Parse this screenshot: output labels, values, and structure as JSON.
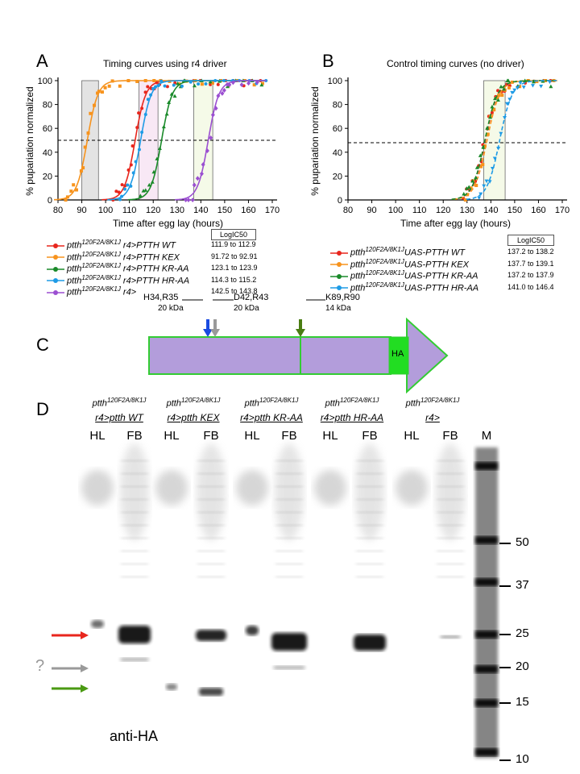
{
  "panelA": {
    "letter": "A",
    "title": "Timing curves using r4 driver",
    "ylabel": "% pupariation normalized",
    "xlabel": "Time after egg lay (hours)",
    "logic50_header": "LogIC50",
    "legend": [
      {
        "genotype": "ptth",
        "sup": "120F2A/8K1J",
        "driver": " r4>PTTH WT",
        "range": "111.9 to 112.9",
        "color": "#e8261d"
      },
      {
        "genotype": "ptth",
        "sup": "120F2A/8K1J",
        "driver": " r4>PTTH KEX",
        "range": "91.72 to 92.91",
        "color": "#f7931d"
      },
      {
        "genotype": "ptth",
        "sup": "120F2A/8K1J",
        "driver": " r4>PTTH KR-AA",
        "range": "123.1 to 123.9",
        "color": "#1a8a2a"
      },
      {
        "genotype": "ptth",
        "sup": "120F2A/8K1J",
        "driver": " r4>PTTH HR-AA",
        "range": "114.3 to 115.2",
        "color": "#1e9be6"
      },
      {
        "genotype": "ptth",
        "sup": "120F2A/8K1J",
        "driver": " r4>",
        "range": "142.5 to 143.8",
        "color": "#9b4fd1"
      }
    ]
  },
  "panelB": {
    "letter": "B",
    "title": "Control timing curves (no driver)",
    "ylabel": "% pupariation normalized",
    "xlabel": "Time after egg lay (hours)",
    "logic50_header": "LogIC50",
    "legend": [
      {
        "genotype": "ptth",
        "sup": "120F2A/8K1J",
        "driver": "UAS-PTTH WT",
        "range": "137.2 to 138.2",
        "color": "#e8261d"
      },
      {
        "genotype": "ptth",
        "sup": "120F2A/8K1J",
        "driver": "UAS-PTTH KEX",
        "range": "137.7 to 139.1",
        "color": "#f7931d"
      },
      {
        "genotype": "ptth",
        "sup": "120F2A/8K1J",
        "driver": "UAS-PTTH KR-AA",
        "range": "137.2 to 137.9",
        "color": "#1a8a2a"
      },
      {
        "genotype": "ptth",
        "sup": "120F2A/8K1J",
        "driver": "UAS-PTTH HR-AA",
        "range": "141.0 to 146.4",
        "color": "#1e9be6"
      }
    ]
  },
  "chart_data": [
    {
      "type": "scatter",
      "title": "Timing curves using r4 driver",
      "xlabel": "Time after egg lay (hours)",
      "ylabel": "% pupariation normalized",
      "xlim": [
        80,
        170
      ],
      "ylim": [
        0,
        100
      ],
      "xticks": [
        "80",
        "90",
        "100",
        "110",
        "120",
        "130",
        "140",
        "150",
        "160",
        "170"
      ],
      "yticks": [
        "0",
        "20",
        "40",
        "60",
        "80",
        "100"
      ],
      "reference_line_y": 50,
      "shaded_intervals": [
        {
          "x": [
            90,
            97
          ],
          "color": "#d0d0d0"
        },
        {
          "x": [
            114,
            122
          ],
          "color": "#f3d9ee"
        },
        {
          "x": [
            137,
            145
          ],
          "color": "#eef7d8"
        }
      ],
      "series": [
        {
          "name": "ptth120F2A/8K1J r4>PTTH WT",
          "color": "#e8261d",
          "ic50": 112.4
        },
        {
          "name": "ptth120F2A/8K1J r4>PTTH KEX",
          "color": "#f7931d",
          "ic50": 92.3
        },
        {
          "name": "ptth120F2A/8K1J r4>PTTH KR-AA",
          "color": "#1a8a2a",
          "ic50": 123.5
        },
        {
          "name": "ptth120F2A/8K1J r4>PTTH HR-AA",
          "color": "#1e9be6",
          "ic50": 114.7
        },
        {
          "name": "ptth120F2A/8K1J r4>",
          "color": "#9b4fd1",
          "ic50": 143.1
        }
      ]
    },
    {
      "type": "scatter",
      "title": "Control timing curves (no driver)",
      "xlabel": "Time after egg lay (hours)",
      "ylabel": "% pupariation normalized",
      "xlim": [
        80,
        170
      ],
      "ylim": [
        0,
        100
      ],
      "xticks": [
        "80",
        "90",
        "100",
        "110",
        "120",
        "130",
        "140",
        "150",
        "160",
        "170"
      ],
      "yticks": [
        "0",
        "20",
        "40",
        "60",
        "80",
        "100"
      ],
      "reference_line_y": 48,
      "shaded_intervals": [
        {
          "x": [
            137,
            146
          ],
          "color": "#eef7d8"
        }
      ],
      "series": [
        {
          "name": "ptth120F2A/8K1J UAS-PTTH WT",
          "color": "#e8261d",
          "ic50": 137.7
        },
        {
          "name": "ptth120F2A/8K1J UAS-PTTH KEX",
          "color": "#f7931d",
          "ic50": 138.4
        },
        {
          "name": "ptth120F2A/8K1J UAS-PTTH KR-AA",
          "color": "#1a8a2a",
          "ic50": 137.5
        },
        {
          "name": "ptth120F2A/8K1J UAS-PTTH HR-AA",
          "color": "#1e9be6",
          "ic50": 143.7
        }
      ]
    }
  ],
  "panelC": {
    "letter": "C",
    "site1": "H34,R35",
    "site1_kda": "20 kDa",
    "site2": "D42,R43",
    "site2_kda": "20 kDa",
    "site3": "K89,R90",
    "site3_kda": "14 kDa",
    "tag": "HA",
    "colors": {
      "protein": "#b39ddb",
      "outline": "#33cc33",
      "tag": "#22dd22",
      "arrow_blue": "#1a4be0",
      "arrow_grey": "#9a9a9a",
      "arrow_green": "#4a7d12"
    }
  },
  "panelD": {
    "letter": "D",
    "groups": [
      {
        "genotype": "ptth",
        "sup": "120F2A/8K1J",
        "sub": "r4>ptth WT"
      },
      {
        "genotype": "ptth",
        "sup": "120F2A/8K1J",
        "sub": "r4>ptth KEX"
      },
      {
        "genotype": "ptth",
        "sup": "120F2A/8K1J",
        "sub": "r4>ptth KR-AA"
      },
      {
        "genotype": "ptth",
        "sup": "120F2A/8K1J",
        "sub": "r4>ptth HR-AA"
      },
      {
        "genotype": "ptth",
        "sup": "120F2A/8K1J",
        "sub": "r4>"
      }
    ],
    "lanes": [
      "HL",
      "FB",
      "HL",
      "FB",
      "HL",
      "FB",
      "HL",
      "FB",
      "HL",
      "FB",
      "M"
    ],
    "markers": [
      "50",
      "37",
      "25",
      "20",
      "15",
      "10"
    ],
    "question": "?",
    "antibody": "anti-HA",
    "arrow_colors": {
      "red": "#e8261d",
      "grey": "#9a9a9a",
      "green": "#4a9a12"
    }
  }
}
